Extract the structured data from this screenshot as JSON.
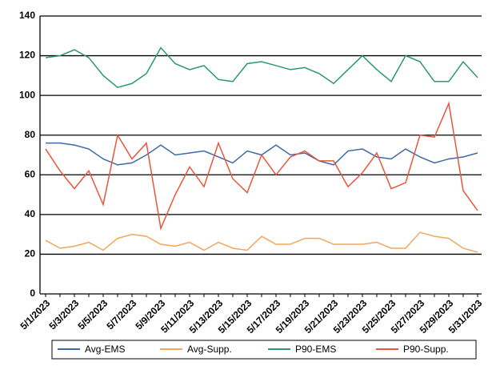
{
  "chart_data": {
    "type": "line",
    "categories": [
      "5/1/2023",
      null,
      "5/3/2023",
      null,
      "5/5/2023",
      null,
      "5/7/2023",
      null,
      "5/9/2023",
      null,
      "5/11/2023",
      null,
      "5/13/2023",
      null,
      "5/15/2023",
      null,
      "5/17/2023",
      null,
      "5/19/2023",
      null,
      "5/21/2023",
      null,
      "5/23/2023",
      null,
      "5/25/2023",
      null,
      "5/27/2023",
      null,
      "5/29/2023",
      null,
      "5/31/2023"
    ],
    "series": [
      {
        "name": "Avg-EMS",
        "color": "#3d6aa6",
        "values": [
          76,
          76,
          75,
          73,
          68,
          65,
          66,
          70,
          75,
          70,
          71,
          72,
          69,
          66,
          72,
          70,
          75,
          70,
          71,
          67,
          65,
          72,
          73,
          69,
          68,
          73,
          69,
          66,
          68,
          69,
          71
        ]
      },
      {
        "name": "Avg-Supp.",
        "color": "#f4a65c",
        "values": [
          27,
          23,
          24,
          26,
          22,
          28,
          30,
          29,
          25,
          24,
          26,
          22,
          26,
          23,
          22,
          29,
          25,
          25,
          28,
          28,
          25,
          25,
          25,
          26,
          23,
          23,
          31,
          29,
          28,
          23,
          21
        ]
      },
      {
        "name": "P90-EMS",
        "color": "#2a9a6c",
        "values": [
          119,
          120,
          123,
          119,
          110,
          104,
          106,
          111,
          124,
          116,
          113,
          115,
          108,
          107,
          116,
          117,
          115,
          113,
          114,
          111,
          106,
          113,
          120,
          113,
          107,
          120,
          117,
          107,
          107,
          117,
          109
        ]
      },
      {
        "name": "P90-Supp.",
        "color": "#e8563b",
        "values": [
          73,
          62,
          53,
          62,
          45,
          80,
          68,
          76,
          33,
          50,
          64,
          54,
          76,
          58,
          51,
          70,
          60,
          69,
          72,
          67,
          67,
          54,
          61,
          71,
          53,
          56,
          80,
          79,
          96,
          52,
          42
        ]
      }
    ],
    "ylim": [
      0,
      140
    ],
    "yticks": [
      0,
      20,
      40,
      60,
      80,
      100,
      120,
      140
    ],
    "grid": true
  }
}
